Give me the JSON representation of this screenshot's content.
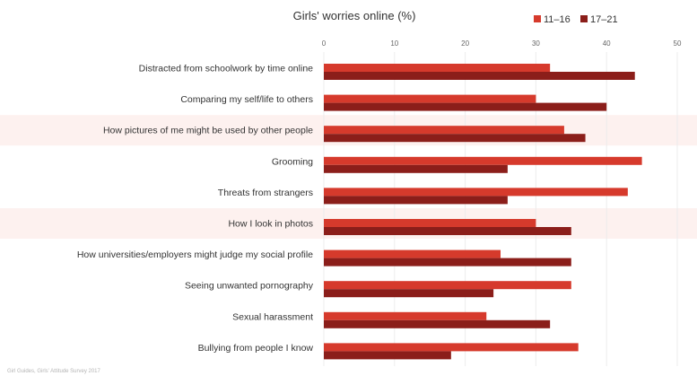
{
  "chart_data": {
    "type": "bar",
    "orientation": "horizontal",
    "title": "Girls' worries online (%)",
    "categories": [
      "Distracted from schoolwork by time online",
      "Comparing my self/life to others",
      "How pictures of me might be used by other people",
      "Grooming",
      "Threats from strangers",
      "How I look in photos",
      "How universities/employers might judge my social profile",
      "Seeing unwanted pornography",
      "Sexual harassment",
      "Bullying from people I know"
    ],
    "series": [
      {
        "name": "11–16",
        "color": "#d63a2c",
        "values": [
          32,
          30,
          34,
          45,
          43,
          30,
          25,
          35,
          23,
          36
        ]
      },
      {
        "name": "17–21",
        "color": "#8b1e1a",
        "values": [
          44,
          40,
          37,
          26,
          26,
          35,
          35,
          24,
          32,
          18
        ]
      }
    ],
    "highlighted_rows": [
      2,
      5
    ],
    "highlight_color": "#fdf1ef",
    "xlim": [
      0,
      50
    ],
    "xticks": [
      0,
      10,
      20,
      30,
      40,
      50
    ],
    "grid": true,
    "legend_position": "top-right",
    "source": "Girl Guides, Girls' Attitude Survey 2017"
  }
}
